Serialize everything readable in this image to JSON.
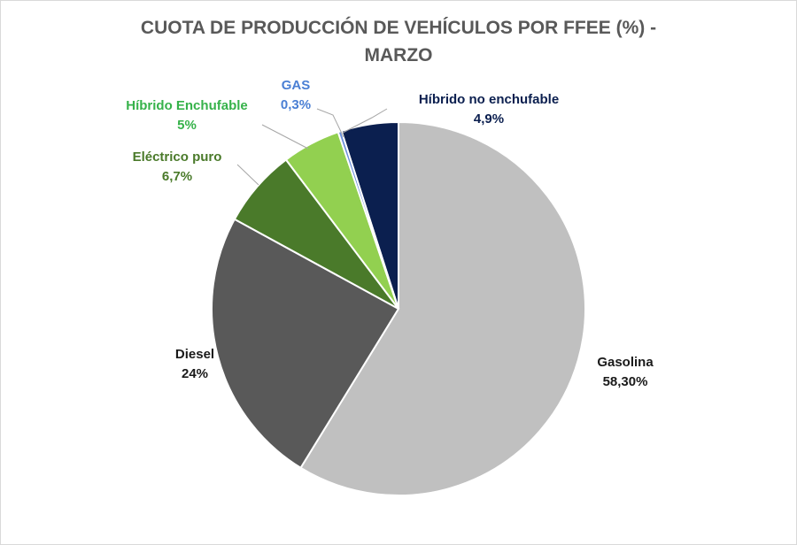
{
  "chart_data": {
    "type": "pie",
    "title_line1": "CUOTA DE PRODUCCIÓN DE VEHÍCULOS POR FFEE (%) -",
    "title_line2": "MARZO",
    "slices": [
      {
        "label": "Híbrido no enchufable",
        "value_label": "4,9%",
        "value": 4.9,
        "color": "#0b1f4f",
        "label_color": "#0b1f4f"
      },
      {
        "label": "Gasolina",
        "value_label": "58,30%",
        "value": 58.3,
        "color": "#c0c0c0",
        "label_color": "#1a1a1a"
      },
      {
        "label": "Diesel",
        "value_label": "24%",
        "value": 24,
        "color": "#595959",
        "label_color": "#1a1a1a"
      },
      {
        "label": "Eléctrico puro",
        "value_label": "6,7%",
        "value": 6.7,
        "color": "#4a7a2a",
        "label_color": "#4a7a2a"
      },
      {
        "label": "Híbrido Enchufable",
        "value_label": "5%",
        "value": 5,
        "color": "#92d050",
        "label_color": "#36b24a"
      },
      {
        "label": "GAS",
        "value_label": "0,3%",
        "value": 0.3,
        "color": "#6b8fd8",
        "label_color": "#4a7fd4"
      }
    ]
  }
}
